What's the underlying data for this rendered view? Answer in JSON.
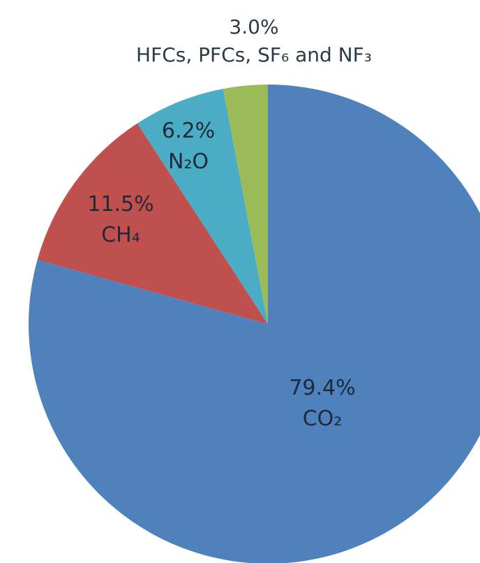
{
  "chart_data": {
    "type": "pie",
    "title": "",
    "start_angle_deg": 0,
    "direction": "clockwise",
    "slices": [
      {
        "name": "CO₂",
        "value": 79.4,
        "label": "79.4%",
        "color": "#4f81bd"
      },
      {
        "name": "CH₄",
        "value": 11.5,
        "label": "11.5%",
        "color": "#c0504d"
      },
      {
        "name": "N₂O",
        "value": 6.2,
        "label": "6.2%",
        "color": "#4bacc6"
      },
      {
        "name": "HFCs, PFCs, SF₆ and NF₃",
        "value": 3.0,
        "label": "3.0%",
        "color": "#9bbb59"
      }
    ],
    "legend": "none"
  }
}
